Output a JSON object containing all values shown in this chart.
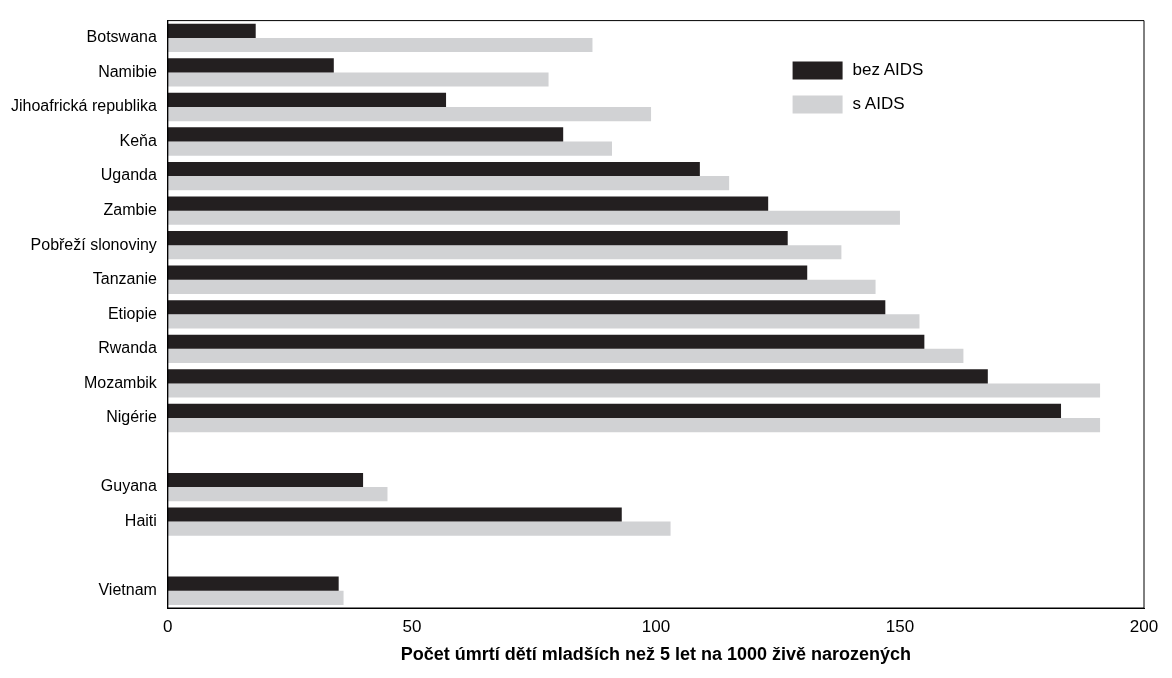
{
  "chart_data": {
    "type": "bar",
    "orientation": "horizontal",
    "xlabel": "Počet úmrtí dětí mladších než 5 let na 1000 živě narozených",
    "categories": [
      "Botswana",
      "Namibie",
      "Jihoafrická republika",
      "Keňa",
      "Uganda",
      "Zambie",
      "Pobřeží slonoviny",
      "Tanzanie",
      "Etiopie",
      "Rwanda",
      "Mozambik",
      "Nigérie",
      null,
      "Guyana",
      "Haiti",
      null,
      "Vietnam"
    ],
    "series": [
      {
        "name": "bez AIDS",
        "color": "#231f20",
        "values": [
          18,
          34,
          57,
          81,
          109,
          123,
          127,
          131,
          147,
          155,
          168,
          183,
          null,
          40,
          93,
          null,
          35
        ]
      },
      {
        "name": "s AIDS",
        "color": "#d1d2d4",
        "values": [
          87,
          78,
          99,
          91,
          115,
          150,
          138,
          145,
          154,
          163,
          191,
          191,
          null,
          45,
          103,
          null,
          36
        ]
      }
    ],
    "xlim": [
      0,
      200
    ],
    "xticks": [
      0,
      50,
      100,
      150,
      200
    ],
    "legend": "top right"
  }
}
